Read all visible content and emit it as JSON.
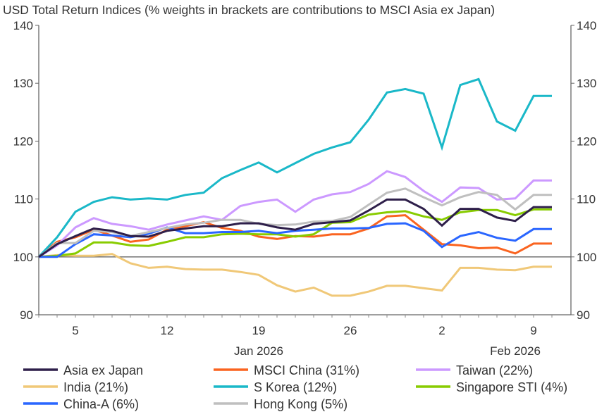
{
  "chart_data": {
    "type": "line",
    "title": "USD Total Return Indices (% weights in brackets are contributions to MSCI Asia ex Japan)",
    "ylim": [
      90,
      140
    ],
    "yticks": [
      90,
      100,
      110,
      120,
      130,
      140
    ],
    "y_axis_both_sides": true,
    "grid": false,
    "reference_line": 100,
    "legend_position": "bottom",
    "x": [
      "2025-12-31",
      "2026-01-02",
      "2026-01-05",
      "2026-01-06",
      "2026-01-07",
      "2026-01-08",
      "2026-01-09",
      "2026-01-12",
      "2026-01-13",
      "2026-01-14",
      "2026-01-15",
      "2026-01-16",
      "2026-01-19",
      "2026-01-20",
      "2026-01-21",
      "2026-01-22",
      "2026-01-23",
      "2026-01-26",
      "2026-01-27",
      "2026-01-28",
      "2026-01-29",
      "2026-01-30",
      "2026-02-02",
      "2026-02-03",
      "2026-02-04",
      "2026-02-05",
      "2026-02-06",
      "2026-02-09",
      "2026-02-10"
    ],
    "xticks": [
      {
        "label": "5",
        "x": "2026-01-05"
      },
      {
        "label": "12",
        "x": "2026-01-12"
      },
      {
        "label": "19",
        "x": "2026-01-19"
      },
      {
        "label": "26",
        "x": "2026-01-26"
      },
      {
        "label": "2",
        "x": "2026-02-02"
      },
      {
        "label": "9",
        "x": "2026-02-09"
      }
    ],
    "month_labels": [
      {
        "label": "Jan 2026",
        "x": "2026-01-19"
      },
      {
        "label": "Feb 2026",
        "x": "2026-02-06"
      }
    ],
    "series": [
      {
        "name": "Asia ex Japan",
        "color": "#2e1f4a",
        "values": [
          100,
          102.2,
          103.6,
          104.9,
          104.5,
          103.6,
          103.5,
          104.5,
          104.9,
          105.3,
          105.3,
          105.8,
          105.8,
          105.1,
          104.7,
          105.7,
          106.0,
          106.3,
          108.0,
          109.9,
          109.9,
          108.3,
          105.4,
          108.3,
          108.3,
          106.8,
          106.2,
          108.6,
          108.6
        ]
      },
      {
        "name": "MSCI China (31%)",
        "color": "#fa6420",
        "values": [
          100,
          102.6,
          103.4,
          104.7,
          103.7,
          102.6,
          103.0,
          104.7,
          105.3,
          106.0,
          105.0,
          104.5,
          103.5,
          103.1,
          103.6,
          103.5,
          103.9,
          103.9,
          104.9,
          107.0,
          107.2,
          104.7,
          102.2,
          102.0,
          101.5,
          101.6,
          100.6,
          102.3,
          102.3
        ]
      },
      {
        "name": "Taiwan (22%)",
        "color": "#cc99ff",
        "values": [
          100,
          102.0,
          105.1,
          106.7,
          105.7,
          105.3,
          104.7,
          105.6,
          106.3,
          107.0,
          106.4,
          108.8,
          109.5,
          109.9,
          107.8,
          109.9,
          110.8,
          111.2,
          112.6,
          114.8,
          113.8,
          111.4,
          109.5,
          112.0,
          111.9,
          109.9,
          110.1,
          113.2,
          113.2
        ]
      },
      {
        "name": "India (21%)",
        "color": "#f0c878",
        "values": [
          100,
          100.3,
          100.2,
          100.2,
          100.5,
          98.9,
          98.1,
          98.3,
          97.9,
          97.8,
          97.8,
          97.4,
          96.9,
          95.1,
          94.0,
          94.7,
          93.3,
          93.3,
          94.0,
          95.0,
          95.0,
          94.6,
          94.2,
          98.1,
          98.1,
          97.8,
          97.7,
          98.3,
          98.3
        ]
      },
      {
        "name": "S Korea (12%)",
        "color": "#1ab8c8",
        "values": [
          100,
          103.4,
          107.8,
          109.5,
          110.3,
          109.9,
          110.1,
          109.9,
          110.7,
          111.1,
          113.6,
          115.0,
          116.3,
          114.6,
          116.2,
          117.8,
          118.9,
          119.8,
          123.7,
          128.4,
          129.0,
          128.2,
          118.9,
          129.7,
          130.7,
          123.4,
          121.8,
          127.8,
          127.8
        ]
      },
      {
        "name": "Singapore STI (4%)",
        "color": "#88cc00",
        "values": [
          100,
          100.2,
          100.6,
          102.5,
          102.5,
          102.0,
          101.9,
          102.6,
          103.4,
          103.4,
          103.9,
          104.0,
          103.9,
          103.9,
          103.5,
          103.9,
          105.9,
          106.0,
          107.3,
          107.7,
          107.9,
          107.0,
          106.4,
          107.7,
          108.1,
          108.1,
          107.2,
          108.2,
          108.2
        ]
      },
      {
        "name": "China-A (6%)",
        "color": "#2a66ff",
        "values": [
          100,
          100,
          102.2,
          103.9,
          103.7,
          103.4,
          104.0,
          105.1,
          104.1,
          104.1,
          104.3,
          104.3,
          104.5,
          104.1,
          104.5,
          104.7,
          104.9,
          104.9,
          105.0,
          105.7,
          105.8,
          104.5,
          101.7,
          103.6,
          104.3,
          103.3,
          102.8,
          104.8,
          104.8
        ]
      },
      {
        "name": "Hong Kong (5%)",
        "color": "#bfbfbf",
        "values": [
          100,
          102.4,
          102.4,
          104.5,
          104.3,
          103.6,
          104.3,
          105.0,
          105.6,
          105.9,
          106.4,
          106.4,
          105.7,
          105.5,
          105.6,
          106.1,
          106.2,
          106.9,
          109.0,
          111.1,
          111.8,
          110.3,
          108.9,
          110.3,
          111.2,
          110.7,
          108.2,
          110.7,
          110.7
        ]
      }
    ]
  }
}
